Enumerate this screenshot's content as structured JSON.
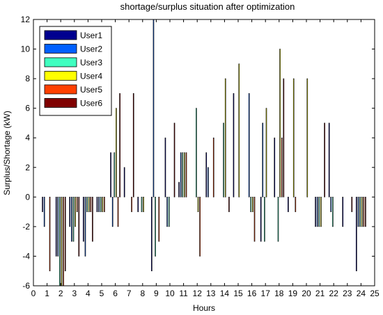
{
  "chart_data": {
    "type": "bar",
    "title": "shortage/surplus situation after optimization",
    "xlabel": "Hours",
    "ylabel": "Surplus/Shortage (kW)",
    "xlim": [
      0,
      25
    ],
    "ylim": [
      -6,
      12
    ],
    "xticks": [
      0,
      1,
      2,
      3,
      4,
      5,
      6,
      7,
      8,
      9,
      10,
      11,
      12,
      13,
      14,
      15,
      16,
      17,
      18,
      19,
      20,
      21,
      22,
      23,
      24,
      25
    ],
    "yticks": [
      -6,
      -4,
      -2,
      0,
      2,
      4,
      6,
      8,
      10,
      12
    ],
    "grid": false,
    "legend_position": "top-left",
    "x": [
      1,
      2,
      3,
      4,
      5,
      6,
      7,
      8,
      9,
      10,
      11,
      12,
      13,
      14,
      15,
      16,
      17,
      18,
      19,
      20,
      21,
      22,
      23,
      24
    ],
    "series": [
      {
        "name": "User1",
        "color": "#00008f",
        "values": [
          -1,
          -4,
          -2,
          -3,
          -1,
          3,
          2,
          -1,
          -5,
          4,
          1,
          0,
          3,
          0,
          7,
          0,
          -3,
          4,
          -1,
          0,
          -2,
          5,
          -2,
          -5
        ]
      },
      {
        "name": "User2",
        "color": "#0060ff",
        "values": [
          -2,
          -4,
          -3,
          -4,
          -1,
          -2,
          0,
          0,
          12,
          -2,
          3,
          0,
          2,
          0,
          0,
          7,
          5,
          0,
          0,
          0,
          -2,
          -1,
          0,
          -2
        ]
      },
      {
        "name": "User3",
        "color": "#40ffc0",
        "values": [
          0,
          -6,
          -3,
          -1,
          -1,
          3,
          0,
          -1,
          -4,
          -2,
          3,
          6,
          0,
          5,
          0,
          -1,
          -3,
          -3,
          0,
          0,
          -2,
          -2,
          0,
          -2
        ]
      },
      {
        "name": "User4",
        "color": "#ffff00",
        "values": [
          0,
          -6,
          -2,
          -1,
          -1,
          6,
          0,
          -1,
          0,
          0,
          3,
          -1,
          0,
          8,
          9,
          -1,
          6,
          10,
          8,
          8,
          -2,
          0,
          0,
          -2
        ]
      },
      {
        "name": "User5",
        "color": "#ff4000",
        "values": [
          -5,
          -6,
          -1,
          -1,
          -1,
          -2,
          -1,
          0,
          -3,
          0,
          3,
          -4,
          4,
          0,
          0,
          -3,
          0,
          4,
          -1,
          0,
          0,
          0,
          0,
          -2
        ]
      },
      {
        "name": "User6",
        "color": "#800000",
        "values": [
          0,
          -5,
          -4,
          -3,
          0,
          7,
          7,
          0,
          0,
          5,
          0,
          0,
          0,
          -1,
          0,
          0,
          0,
          8,
          0,
          0,
          5,
          0,
          -1,
          -2
        ]
      }
    ]
  }
}
